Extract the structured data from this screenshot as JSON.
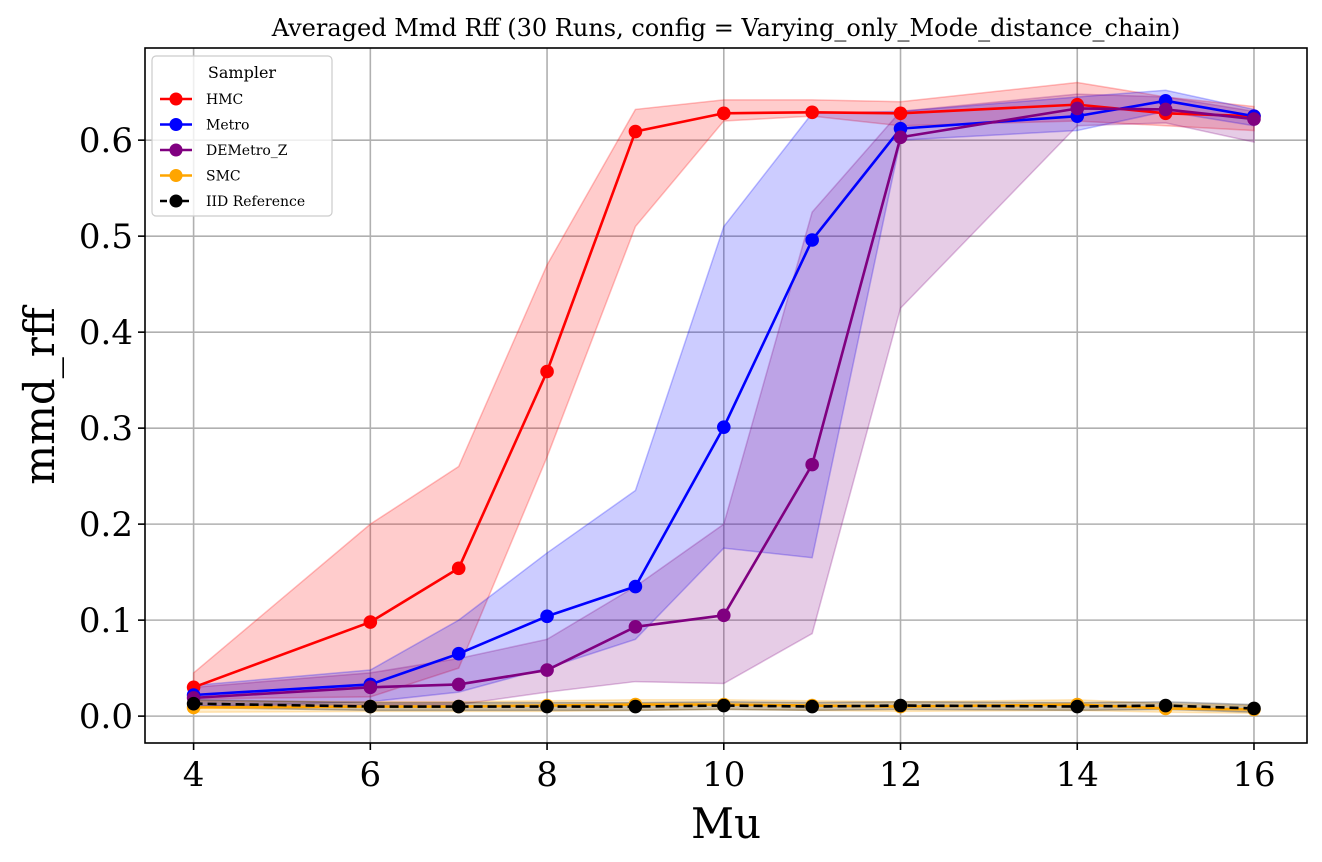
{
  "chart_data": {
    "type": "line",
    "title": "Averaged Mmd Rff (30 Runs, config = Varying_only_Mode_distance_chain)",
    "xlabel": "Mu",
    "ylabel": "mmd_rff",
    "xlim": [
      3.45,
      16.6
    ],
    "ylim": [
      -0.028,
      0.696
    ],
    "xticks": [
      4,
      6,
      8,
      10,
      12,
      14,
      16
    ],
    "xtick_labels": [
      "4",
      "6",
      "8",
      "10",
      "12",
      "14",
      "16"
    ],
    "yticks": [
      0.0,
      0.1,
      0.2,
      0.3,
      0.4,
      0.5,
      0.6
    ],
    "ytick_labels": [
      "0.0",
      "0.1",
      "0.2",
      "0.3",
      "0.4",
      "0.5",
      "0.6"
    ],
    "grid": true,
    "legend": {
      "title": "Sampler",
      "position": "top-left"
    },
    "x": [
      4,
      6,
      7,
      8,
      9,
      10,
      11,
      12,
      14,
      15,
      16
    ],
    "series": [
      {
        "name": "HMC",
        "color": "#ff0000",
        "dashed": false,
        "values": [
          0.03,
          0.098,
          0.154,
          0.359,
          0.609,
          0.628,
          0.629,
          0.628,
          0.637,
          0.628,
          0.625
        ],
        "band_lower": [
          0.018,
          0.02,
          0.05,
          0.27,
          0.51,
          0.62,
          0.625,
          0.615,
          0.62,
          0.615,
          0.61
        ],
        "band_upper": [
          0.045,
          0.2,
          0.26,
          0.47,
          0.632,
          0.642,
          0.642,
          0.64,
          0.66,
          0.645,
          0.635
        ]
      },
      {
        "name": "Metro",
        "color": "#0000ff",
        "dashed": false,
        "values": [
          0.022,
          0.033,
          0.065,
          0.104,
          0.135,
          0.301,
          0.496,
          0.612,
          0.625,
          0.641,
          0.625
        ],
        "band_lower": [
          0.01,
          0.015,
          0.025,
          0.05,
          0.08,
          0.175,
          0.165,
          0.6,
          0.61,
          0.63,
          0.615
        ],
        "band_upper": [
          0.032,
          0.048,
          0.1,
          0.17,
          0.235,
          0.51,
          0.628,
          0.63,
          0.645,
          0.652,
          0.632
        ]
      },
      {
        "name": "DEMetro_Z",
        "color": "#800080",
        "dashed": false,
        "values": [
          0.019,
          0.03,
          0.033,
          0.048,
          0.093,
          0.105,
          0.262,
          0.603,
          0.633,
          0.632,
          0.622
        ],
        "band_lower": [
          0.01,
          0.012,
          0.012,
          0.025,
          0.036,
          0.034,
          0.086,
          0.425,
          0.615,
          0.618,
          0.598
        ],
        "band_upper": [
          0.03,
          0.045,
          0.06,
          0.08,
          0.135,
          0.2,
          0.525,
          0.63,
          0.648,
          0.645,
          0.63
        ]
      },
      {
        "name": "SMC",
        "color": "#ffa500",
        "dashed": false,
        "values": [
          0.009,
          0.01,
          0.01,
          0.011,
          0.012,
          0.012,
          0.011,
          0.01,
          0.012,
          0.008,
          0.007
        ],
        "band_lower": [
          0.004,
          0.005,
          0.005,
          0.005,
          0.006,
          0.007,
          0.006,
          0.005,
          0.006,
          0.004,
          0.003
        ],
        "band_upper": [
          0.016,
          0.015,
          0.015,
          0.016,
          0.017,
          0.017,
          0.016,
          0.015,
          0.017,
          0.013,
          0.011
        ]
      },
      {
        "name": "IID Reference",
        "color": "#000000",
        "dashed": true,
        "values": [
          0.013,
          0.01,
          0.01,
          0.01,
          0.01,
          0.011,
          0.01,
          0.011,
          0.01,
          0.011,
          0.008
        ],
        "band_lower": [
          0.009,
          0.006,
          0.006,
          0.006,
          0.006,
          0.007,
          0.006,
          0.007,
          0.006,
          0.007,
          0.004
        ],
        "band_upper": [
          0.017,
          0.014,
          0.014,
          0.014,
          0.014,
          0.015,
          0.014,
          0.015,
          0.014,
          0.015,
          0.012
        ]
      }
    ]
  }
}
